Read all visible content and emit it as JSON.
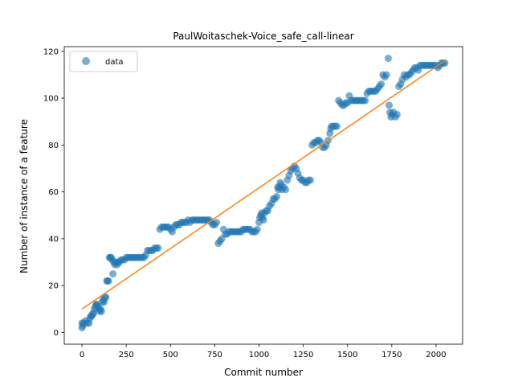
{
  "chart_data": {
    "type": "scatter",
    "title": "PaulWoitaschek-Voice_safe_call-linear",
    "xlabel": "Commit number",
    "ylabel": "Number of instance of a feature",
    "xlim": [
      -100,
      2150
    ],
    "ylim": [
      -5,
      122
    ],
    "xticks": [
      "0",
      "250",
      "500",
      "750",
      "1000",
      "1250",
      "1500",
      "1750",
      "2000"
    ],
    "yticks": [
      "0",
      "20",
      "40",
      "60",
      "80",
      "100",
      "120"
    ],
    "legend": {
      "placement": "upper-left",
      "entries": [
        "data"
      ]
    },
    "colors": {
      "data": "#1f77b4",
      "fit": "#ff7f0e"
    },
    "series": [
      {
        "name": "data",
        "kind": "scatter",
        "points": [
          [
            0,
            2
          ],
          [
            0,
            4
          ],
          [
            5,
            3
          ],
          [
            10,
            4
          ],
          [
            20,
            5
          ],
          [
            30,
            4
          ],
          [
            40,
            4
          ],
          [
            45,
            6
          ],
          [
            50,
            7
          ],
          [
            55,
            7
          ],
          [
            60,
            8
          ],
          [
            65,
            8
          ],
          [
            70,
            10
          ],
          [
            75,
            11
          ],
          [
            80,
            12
          ],
          [
            85,
            12
          ],
          [
            90,
            11
          ],
          [
            95,
            10
          ],
          [
            100,
            9
          ],
          [
            105,
            10
          ],
          [
            110,
            9
          ],
          [
            115,
            13
          ],
          [
            120,
            14
          ],
          [
            125,
            13
          ],
          [
            130,
            15
          ],
          [
            135,
            15
          ],
          [
            140,
            22
          ],
          [
            145,
            22
          ],
          [
            150,
            22
          ],
          [
            155,
            32
          ],
          [
            160,
            32
          ],
          [
            165,
            32
          ],
          [
            170,
            31
          ],
          [
            175,
            25
          ],
          [
            180,
            30
          ],
          [
            185,
            29
          ],
          [
            190,
            30
          ],
          [
            200,
            29
          ],
          [
            205,
            30
          ],
          [
            210,
            30
          ],
          [
            220,
            31
          ],
          [
            230,
            31
          ],
          [
            240,
            31
          ],
          [
            250,
            32
          ],
          [
            260,
            32
          ],
          [
            270,
            32
          ],
          [
            280,
            32
          ],
          [
            290,
            32
          ],
          [
            300,
            32
          ],
          [
            310,
            32
          ],
          [
            320,
            32
          ],
          [
            330,
            32
          ],
          [
            340,
            32
          ],
          [
            350,
            32
          ],
          [
            360,
            33
          ],
          [
            370,
            35
          ],
          [
            380,
            35
          ],
          [
            390,
            35
          ],
          [
            400,
            35
          ],
          [
            410,
            36
          ],
          [
            420,
            36
          ],
          [
            430,
            36
          ],
          [
            440,
            44
          ],
          [
            450,
            45
          ],
          [
            460,
            45
          ],
          [
            470,
            45
          ],
          [
            480,
            45
          ],
          [
            490,
            45
          ],
          [
            500,
            44
          ],
          [
            510,
            43
          ],
          [
            520,
            45
          ],
          [
            530,
            46
          ],
          [
            540,
            46
          ],
          [
            550,
            46
          ],
          [
            560,
            47
          ],
          [
            570,
            47
          ],
          [
            580,
            47
          ],
          [
            590,
            47
          ],
          [
            600,
            48
          ],
          [
            610,
            47
          ],
          [
            620,
            48
          ],
          [
            630,
            48
          ],
          [
            640,
            48
          ],
          [
            650,
            48
          ],
          [
            660,
            48
          ],
          [
            670,
            48
          ],
          [
            680,
            48
          ],
          [
            690,
            48
          ],
          [
            700,
            48
          ],
          [
            710,
            48
          ],
          [
            720,
            48
          ],
          [
            730,
            47
          ],
          [
            740,
            46
          ],
          [
            750,
            46
          ],
          [
            760,
            47
          ],
          [
            770,
            38
          ],
          [
            780,
            39
          ],
          [
            790,
            40
          ],
          [
            800,
            44
          ],
          [
            810,
            42
          ],
          [
            820,
            42
          ],
          [
            830,
            43
          ],
          [
            840,
            43
          ],
          [
            850,
            43
          ],
          [
            860,
            43
          ],
          [
            870,
            43
          ],
          [
            880,
            43
          ],
          [
            890,
            43
          ],
          [
            900,
            43
          ],
          [
            910,
            44
          ],
          [
            920,
            44
          ],
          [
            930,
            44
          ],
          [
            940,
            44
          ],
          [
            950,
            44
          ],
          [
            960,
            43
          ],
          [
            970,
            43
          ],
          [
            980,
            43
          ],
          [
            990,
            44
          ],
          [
            1000,
            47
          ],
          [
            1005,
            49
          ],
          [
            1010,
            50
          ],
          [
            1015,
            51
          ],
          [
            1020,
            49
          ],
          [
            1025,
            48
          ],
          [
            1030,
            51
          ],
          [
            1040,
            52
          ],
          [
            1050,
            52
          ],
          [
            1060,
            54
          ],
          [
            1070,
            55
          ],
          [
            1080,
            57
          ],
          [
            1090,
            57
          ],
          [
            1100,
            58
          ],
          [
            1105,
            62
          ],
          [
            1110,
            61
          ],
          [
            1115,
            62
          ],
          [
            1120,
            64
          ],
          [
            1125,
            63
          ],
          [
            1130,
            61
          ],
          [
            1140,
            62
          ],
          [
            1150,
            61
          ],
          [
            1160,
            65
          ],
          [
            1170,
            67
          ],
          [
            1180,
            69
          ],
          [
            1190,
            70
          ],
          [
            1200,
            71
          ],
          [
            1210,
            70
          ],
          [
            1220,
            68
          ],
          [
            1230,
            66
          ],
          [
            1240,
            65
          ],
          [
            1250,
            65
          ],
          [
            1260,
            64
          ],
          [
            1270,
            64
          ],
          [
            1280,
            65
          ],
          [
            1290,
            65
          ],
          [
            1300,
            80
          ],
          [
            1310,
            81
          ],
          [
            1320,
            81
          ],
          [
            1330,
            82
          ],
          [
            1340,
            82
          ],
          [
            1350,
            81
          ],
          [
            1360,
            79
          ],
          [
            1370,
            79
          ],
          [
            1380,
            80
          ],
          [
            1390,
            82
          ],
          [
            1400,
            85
          ],
          [
            1405,
            87
          ],
          [
            1410,
            88
          ],
          [
            1420,
            88
          ],
          [
            1430,
            88
          ],
          [
            1440,
            88
          ],
          [
            1450,
            99
          ],
          [
            1460,
            98
          ],
          [
            1470,
            97
          ],
          [
            1480,
            97
          ],
          [
            1490,
            98
          ],
          [
            1500,
            98
          ],
          [
            1510,
            101
          ],
          [
            1520,
            99
          ],
          [
            1530,
            99
          ],
          [
            1540,
            99
          ],
          [
            1550,
            99
          ],
          [
            1560,
            99
          ],
          [
            1570,
            99
          ],
          [
            1580,
            99
          ],
          [
            1590,
            99
          ],
          [
            1600,
            99
          ],
          [
            1610,
            102
          ],
          [
            1620,
            103
          ],
          [
            1630,
            103
          ],
          [
            1640,
            103
          ],
          [
            1650,
            103
          ],
          [
            1660,
            103
          ],
          [
            1670,
            104
          ],
          [
            1680,
            105
          ],
          [
            1690,
            106
          ],
          [
            1700,
            110
          ],
          [
            1710,
            109
          ],
          [
            1720,
            110
          ],
          [
            1730,
            117
          ],
          [
            1735,
            97
          ],
          [
            1740,
            94
          ],
          [
            1745,
            92
          ],
          [
            1750,
            93
          ],
          [
            1760,
            94
          ],
          [
            1770,
            92
          ],
          [
            1780,
            93
          ],
          [
            1790,
            105
          ],
          [
            1800,
            106
          ],
          [
            1810,
            108
          ],
          [
            1820,
            110
          ],
          [
            1830,
            109
          ],
          [
            1840,
            110
          ],
          [
            1850,
            110
          ],
          [
            1860,
            111
          ],
          [
            1870,
            112
          ],
          [
            1880,
            113
          ],
          [
            1890,
            113
          ],
          [
            1900,
            112
          ],
          [
            1910,
            114
          ],
          [
            1920,
            114
          ],
          [
            1930,
            114
          ],
          [
            1940,
            114
          ],
          [
            1950,
            114
          ],
          [
            1960,
            114
          ],
          [
            1970,
            114
          ],
          [
            1980,
            114
          ],
          [
            1990,
            114
          ],
          [
            2000,
            114
          ],
          [
            2010,
            113
          ],
          [
            2020,
            114
          ],
          [
            2030,
            115
          ],
          [
            2040,
            115
          ],
          [
            2050,
            115
          ]
        ]
      },
      {
        "kind": "line",
        "points": [
          [
            0,
            10
          ],
          [
            2050,
            116
          ]
        ]
      }
    ]
  }
}
